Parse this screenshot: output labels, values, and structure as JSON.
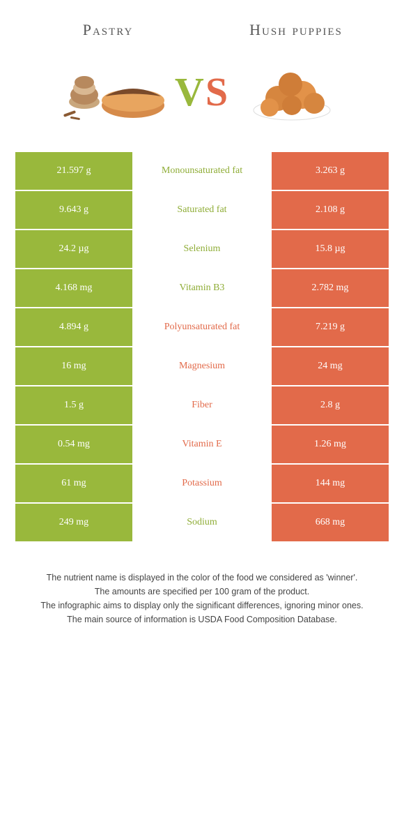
{
  "header": {
    "left_title": "Pastry",
    "right_title": "Hush puppies"
  },
  "vs": {
    "v": "V",
    "s": "S"
  },
  "colors": {
    "left": "#99b83c",
    "right": "#e26a4a",
    "left_text": "#8fad37",
    "right_text": "#e26a4a",
    "footer_text": "#444444"
  },
  "rows": [
    {
      "left": "21.597 g",
      "label": "Monounsaturated fat",
      "right": "3.263 g",
      "winner": "left"
    },
    {
      "left": "9.643 g",
      "label": "Saturated fat",
      "right": "2.108 g",
      "winner": "left"
    },
    {
      "left": "24.2 µg",
      "label": "Selenium",
      "right": "15.8 µg",
      "winner": "left"
    },
    {
      "left": "4.168 mg",
      "label": "Vitamin B3",
      "right": "2.782 mg",
      "winner": "left"
    },
    {
      "left": "4.894 g",
      "label": "Polyunsaturated fat",
      "right": "7.219 g",
      "winner": "right"
    },
    {
      "left": "16 mg",
      "label": "Magnesium",
      "right": "24 mg",
      "winner": "right"
    },
    {
      "left": "1.5 g",
      "label": "Fiber",
      "right": "2.8 g",
      "winner": "right"
    },
    {
      "left": "0.54 mg",
      "label": "Vitamin E",
      "right": "1.26 mg",
      "winner": "right"
    },
    {
      "left": "61 mg",
      "label": "Potassium",
      "right": "144 mg",
      "winner": "right"
    },
    {
      "left": "249 mg",
      "label": "Sodium",
      "right": "668 mg",
      "winner": "left"
    }
  ],
  "footer": {
    "line1": "The nutrient name is displayed in the color of the food we considered as 'winner'.",
    "line2": "The amounts are specified per 100 gram of the product.",
    "line3": "The infographic aims to display only the significant differences, ignoring minor ones.",
    "line4": "The main source of information is USDA Food Composition Database."
  }
}
